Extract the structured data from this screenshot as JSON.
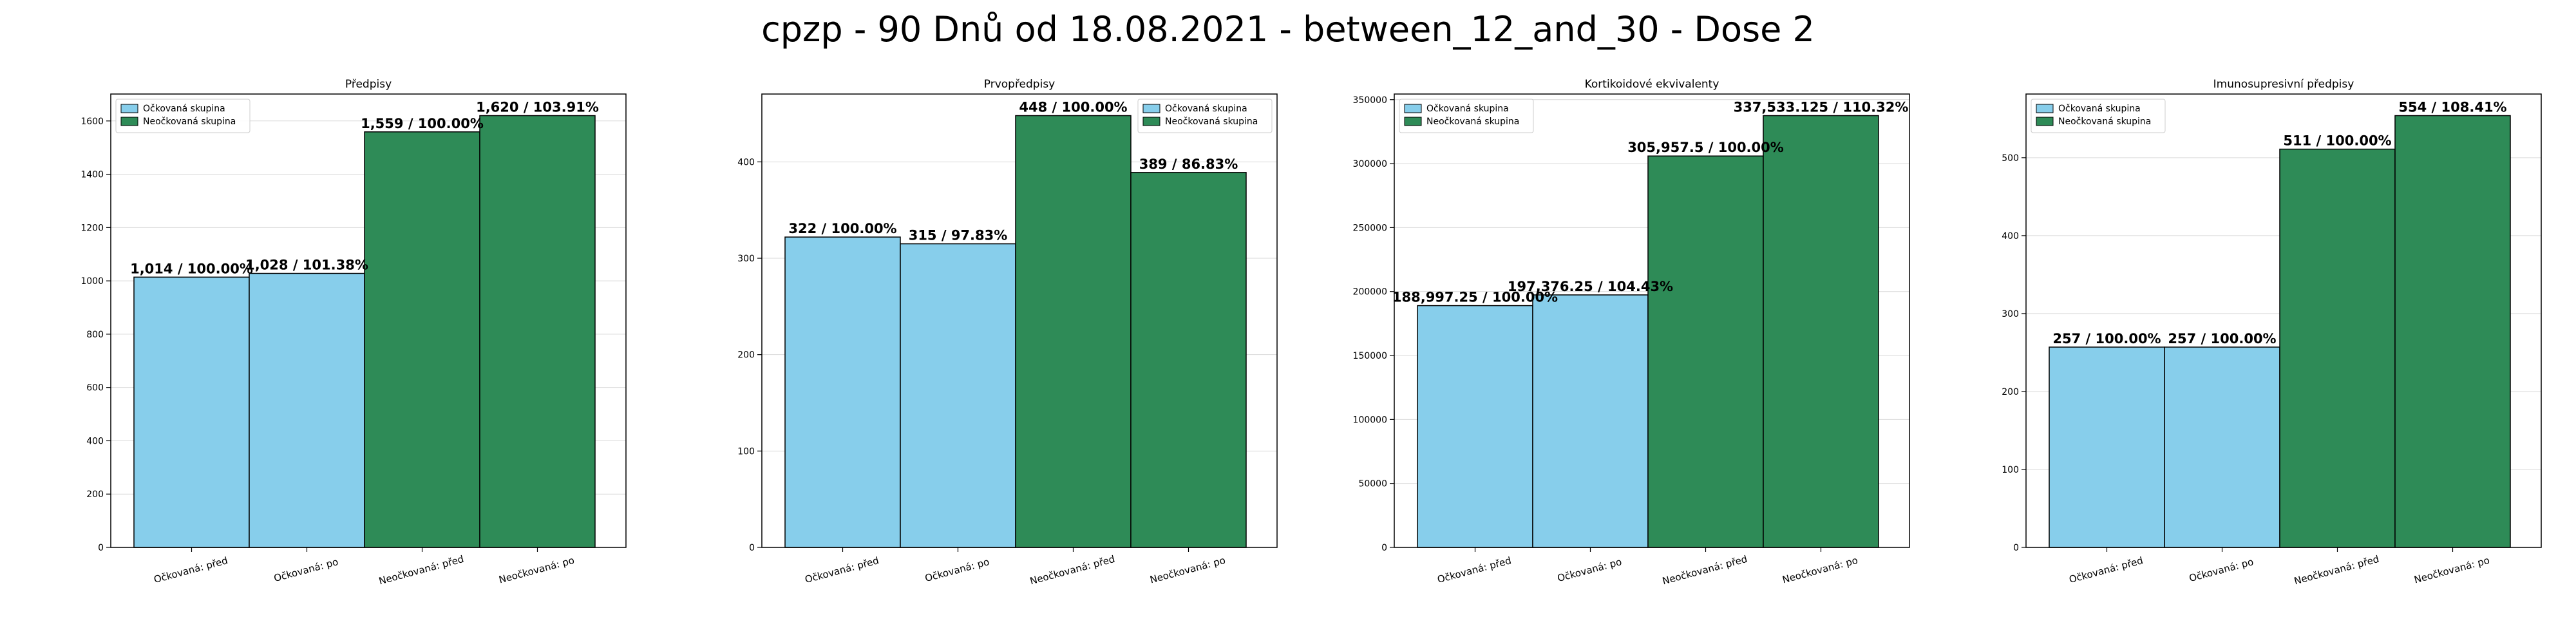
{
  "figure": {
    "title": "cpzp - 90 Dnů od 18.08.2021 - between_12_and_30 - Dose 2"
  },
  "colors": {
    "vaccinated": "#87ceeb",
    "unvaccinated": "#2e8b57",
    "bar_edge": "#000000"
  },
  "chart_data": [
    {
      "type": "bar",
      "title": "Předpisy",
      "categories": [
        "Očkovaná: před",
        "Očkovaná: po",
        "Neočkovaná: před",
        "Neočkovaná: po"
      ],
      "values": [
        1014,
        1028,
        1559,
        1620
      ],
      "bar_labels": [
        "1,014 / 100.00%",
        "1,028 / 101.38%",
        "1,559 / 100.00%",
        "1,620 / 103.91%"
      ],
      "groups": [
        "vaccinated",
        "vaccinated",
        "unvaccinated",
        "unvaccinated"
      ],
      "legend": [
        "Očkovaná skupina",
        "Neočkovaná skupina"
      ],
      "legend_position": "top-left",
      "ylim": [
        0,
        1701
      ],
      "yticks": [
        0,
        200,
        400,
        600,
        800,
        1000,
        1200,
        1400,
        1600
      ],
      "grid": true
    },
    {
      "type": "bar",
      "title": "Prvopředpisy",
      "categories": [
        "Očkovaná: před",
        "Očkovaná: po",
        "Neočkovaná: před",
        "Neočkovaná: po"
      ],
      "values": [
        322,
        315,
        448,
        389
      ],
      "bar_labels": [
        "322 / 100.00%",
        "315 / 97.83%",
        "448 / 100.00%",
        "389 / 86.83%"
      ],
      "groups": [
        "vaccinated",
        "vaccinated",
        "unvaccinated",
        "unvaccinated"
      ],
      "legend": [
        "Očkovaná skupina",
        "Neočkovaná skupina"
      ],
      "legend_position": "top-right",
      "ylim": [
        0,
        470.4
      ],
      "yticks": [
        0,
        100,
        200,
        300,
        400
      ],
      "grid": true
    },
    {
      "type": "bar",
      "title": "Kortikoidové ekvivalenty",
      "categories": [
        "Očkovaná: před",
        "Očkovaná: po",
        "Neočkovaná: před",
        "Neočkovaná: po"
      ],
      "values": [
        188997.25,
        197376.25,
        305957.5,
        337533.125
      ],
      "bar_labels": [
        "188,997.25 / 100.00%",
        "197,376.25 / 104.43%",
        "305,957.5 / 100.00%",
        "337,533.125 / 110.32%"
      ],
      "groups": [
        "vaccinated",
        "vaccinated",
        "unvaccinated",
        "unvaccinated"
      ],
      "legend": [
        "Očkovaná skupina",
        "Neočkovaná skupina"
      ],
      "legend_position": "top-left",
      "ylim": [
        0,
        354410
      ],
      "yticks": [
        0,
        50000,
        100000,
        150000,
        200000,
        250000,
        300000,
        350000
      ],
      "grid": true
    },
    {
      "type": "bar",
      "title": "Imunosupresivní předpisy",
      "categories": [
        "Očkovaná: před",
        "Očkovaná: po",
        "Neočkovaná: před",
        "Neočkovaná: po"
      ],
      "values": [
        257,
        257,
        511,
        554
      ],
      "bar_labels": [
        "257 / 100.00%",
        "257 / 100.00%",
        "511 / 100.00%",
        "554 / 108.41%"
      ],
      "groups": [
        "vaccinated",
        "vaccinated",
        "unvaccinated",
        "unvaccinated"
      ],
      "legend": [
        "Očkovaná skupina",
        "Neočkovaná skupina"
      ],
      "legend_position": "top-left",
      "ylim": [
        0,
        581.7
      ],
      "yticks": [
        0,
        100,
        200,
        300,
        400,
        500
      ],
      "grid": true
    }
  ]
}
